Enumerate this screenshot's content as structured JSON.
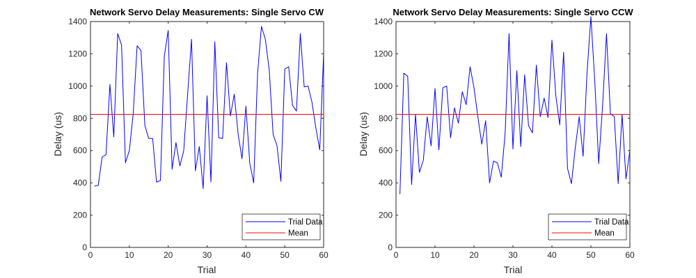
{
  "chart_data": [
    {
      "type": "line",
      "title": "Network Servo Delay Measurements: Single Servo CW",
      "xlabel": "Trial",
      "ylabel": "Delay (us)",
      "xlim": [
        0,
        60
      ],
      "ylim": [
        0,
        1400
      ],
      "xticks": [
        0,
        10,
        20,
        30,
        40,
        50,
        60
      ],
      "yticks": [
        0,
        200,
        400,
        600,
        800,
        1000,
        1200,
        1400
      ],
      "grid": false,
      "legend": {
        "position": "bottom-right",
        "entries": [
          "Trial Data",
          "Mean"
        ]
      },
      "series": [
        {
          "name": "Trial Data",
          "color": "#0000ff",
          "x": [
            1,
            2,
            3,
            4,
            5,
            6,
            7,
            8,
            9,
            10,
            11,
            12,
            13,
            14,
            15,
            16,
            17,
            18,
            19,
            20,
            21,
            22,
            23,
            24,
            25,
            26,
            27,
            28,
            29,
            30,
            31,
            32,
            33,
            34,
            35,
            36,
            37,
            38,
            39,
            40,
            41,
            42,
            43,
            44,
            45,
            46,
            47,
            48,
            49,
            50,
            51,
            52,
            53,
            54,
            55,
            56,
            57,
            58,
            59,
            60
          ],
          "values": [
            380,
            385,
            560,
            575,
            1010,
            685,
            1325,
            1255,
            525,
            600,
            830,
            1250,
            1220,
            755,
            675,
            675,
            405,
            415,
            1185,
            1345,
            485,
            650,
            505,
            600,
            950,
            1290,
            475,
            625,
            365,
            940,
            405,
            1275,
            680,
            675,
            1145,
            815,
            950,
            700,
            550,
            875,
            520,
            400,
            1080,
            1370,
            1290,
            1100,
            700,
            630,
            410,
            1105,
            1120,
            880,
            845,
            1325,
            995,
            1000,
            900,
            740,
            605,
            1205
          ]
        },
        {
          "name": "Mean",
          "color": "#ff0000",
          "x": [
            0,
            60
          ],
          "values": [
            825,
            825
          ]
        }
      ]
    },
    {
      "type": "line",
      "title": "Network Servo Delay Measurements: Single Servo CCW",
      "xlabel": "Trial",
      "ylabel": "Delay (us)",
      "xlim": [
        0,
        60
      ],
      "ylim": [
        0,
        1400
      ],
      "xticks": [
        0,
        10,
        20,
        30,
        40,
        50,
        60
      ],
      "yticks": [
        0,
        200,
        400,
        600,
        800,
        1000,
        1200,
        1400
      ],
      "grid": false,
      "legend": {
        "position": "bottom-right",
        "entries": [
          "Trial Data",
          "Mean"
        ]
      },
      "series": [
        {
          "name": "Trial Data",
          "color": "#0000ff",
          "x": [
            1,
            2,
            3,
            4,
            5,
            6,
            7,
            8,
            9,
            10,
            11,
            12,
            13,
            14,
            15,
            16,
            17,
            18,
            19,
            20,
            21,
            22,
            23,
            24,
            25,
            26,
            27,
            28,
            29,
            30,
            31,
            32,
            33,
            34,
            35,
            36,
            37,
            38,
            39,
            40,
            41,
            42,
            43,
            44,
            45,
            46,
            47,
            48,
            49,
            50,
            51,
            52,
            53,
            54,
            55,
            56,
            57,
            58,
            59,
            60
          ],
          "values": [
            330,
            1080,
            1060,
            390,
            825,
            465,
            540,
            810,
            630,
            985,
            605,
            990,
            1000,
            680,
            865,
            770,
            965,
            885,
            1120,
            990,
            810,
            640,
            785,
            400,
            535,
            525,
            435,
            710,
            1325,
            610,
            1095,
            625,
            1070,
            755,
            710,
            1130,
            810,
            925,
            805,
            1285,
            940,
            760,
            1210,
            490,
            395,
            620,
            810,
            565,
            1080,
            1430,
            1030,
            520,
            880,
            1325,
            830,
            810,
            395,
            825,
            425,
            600
          ]
        },
        {
          "name": "Mean",
          "color": "#ff0000",
          "x": [
            0,
            60
          ],
          "values": [
            825,
            825
          ]
        }
      ]
    }
  ]
}
